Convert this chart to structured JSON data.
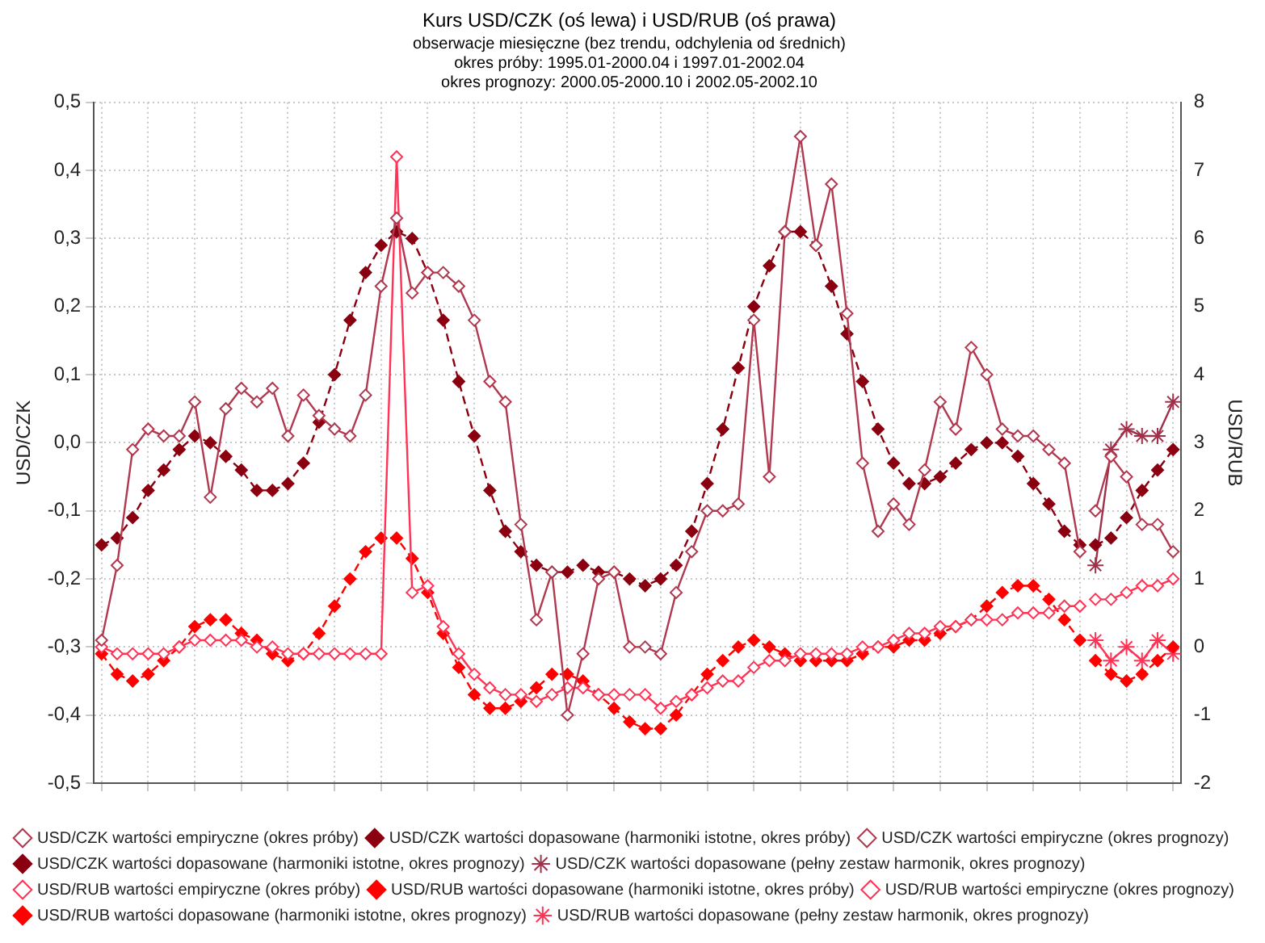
{
  "chart_data": {
    "type": "line",
    "title": "Kurs USD/CZK (oś lewa) i USD/RUB (oś prawa)",
    "subtitle": "obserwacje miesięczne (bez trendu, odchylenia od średnich)",
    "annotations": [
      "okres próby: 1995.01-2000.04 i 1997.01-2002.04",
      "okres prognozy: 2000.05-2000.10 i 2002.05-2002.10"
    ],
    "ylabel": "USD/CZK",
    "y2label": "USD/RUB",
    "categories": [
      null,
      null,
      null,
      null,
      null,
      null,
      null,
      null,
      null,
      null,
      null,
      null,
      null,
      null,
      null,
      null,
      null,
      null,
      null,
      null,
      null,
      null,
      null,
      null,
      null,
      null,
      null,
      null,
      null,
      null,
      null,
      null,
      null,
      null,
      null,
      null,
      null,
      null,
      null,
      null,
      null,
      null,
      null,
      null,
      null,
      null,
      null,
      null,
      null,
      null,
      null,
      null,
      null,
      null,
      null,
      null,
      null,
      null,
      null,
      null,
      null,
      null,
      null,
      null,
      null,
      null,
      null,
      null,
      null,
      null
    ],
    "ylim": [
      -0.5,
      0.5
    ],
    "yticks": [
      {
        "value": -0.5,
        "label": "-0,5"
      },
      {
        "value": -0.4,
        "label": "-0,4"
      },
      {
        "value": -0.3,
        "label": "-0,3"
      },
      {
        "value": -0.2,
        "label": "-0,2"
      },
      {
        "value": -0.1,
        "label": "-0,1"
      },
      {
        "value": 0,
        "label": "0,0"
      },
      {
        "value": 0.1,
        "label": "0,1"
      },
      {
        "value": 0.2,
        "label": "0,2"
      },
      {
        "value": 0.3,
        "label": "0,3"
      },
      {
        "value": 0.4,
        "label": "0,4"
      },
      {
        "value": 0.5,
        "label": "0,5"
      }
    ],
    "y2lim": [
      -2,
      8
    ],
    "y2ticks": [
      -2,
      -1,
      0,
      1,
      2,
      3,
      4,
      5,
      6,
      7,
      8
    ],
    "grid": true,
    "legend": "bottom",
    "series": [
      {
        "name": "USD/CZK wartości empiryczne (okres próby)",
        "color": "#b0384f",
        "marker": "diamond",
        "line_style": "solid",
        "values": [
          -0.29,
          -0.18,
          -0.01,
          0.02,
          0.01,
          0.01,
          0.06,
          -0.08,
          0.05,
          0.08,
          0.06,
          0.08,
          0.01,
          0.07,
          0.04,
          0.02,
          0.01,
          0.07,
          0.23,
          0.33,
          0.22,
          0.25,
          0.25,
          0.23,
          0.18,
          0.09,
          0.06,
          -0.12,
          -0.26,
          -0.19,
          -0.4,
          -0.31,
          -0.2,
          -0.19,
          -0.3,
          -0.3,
          -0.31,
          -0.22,
          -0.16,
          -0.1,
          -0.1,
          -0.09,
          0.18,
          -0.05,
          0.31,
          0.45,
          0.29,
          0.38,
          0.19,
          -0.03,
          -0.13,
          -0.09,
          -0.12,
          -0.04,
          0.06,
          0.02,
          0.14,
          0.1,
          0.02,
          0.01,
          0.01,
          -0.01,
          -0.03,
          -0.16,
          null,
          null,
          null,
          null,
          null,
          null
        ]
      },
      {
        "name": "USD/CZK wartości dopasowane (harmoniki istotne, okres próby)",
        "color": "#8b0010",
        "marker": "diamond",
        "line_style": "dashed",
        "values": [
          -0.15,
          -0.14,
          -0.11,
          -0.07,
          -0.04,
          -0.01,
          0.01,
          0.0,
          -0.02,
          -0.04,
          -0.07,
          -0.07,
          -0.06,
          -0.03,
          0.03,
          0.1,
          0.18,
          0.25,
          0.29,
          0.31,
          0.3,
          0.25,
          0.18,
          0.09,
          0.01,
          -0.07,
          -0.13,
          -0.16,
          -0.18,
          -0.19,
          -0.19,
          -0.18,
          -0.19,
          -0.19,
          -0.2,
          -0.21,
          -0.2,
          -0.18,
          -0.13,
          -0.06,
          0.02,
          0.11,
          0.2,
          0.26,
          0.31,
          0.31,
          0.29,
          0.23,
          0.16,
          0.09,
          0.02,
          -0.03,
          -0.06,
          -0.06,
          -0.05,
          -0.03,
          -0.01,
          0.0,
          0.0,
          -0.02,
          -0.06,
          -0.09,
          -0.13,
          -0.15,
          null,
          null,
          null,
          null,
          null,
          null
        ]
      },
      {
        "name": "USD/CZK wartości empiryczne (okres prognozy)",
        "color": "#b0384f",
        "marker": "diamond",
        "line_style": "solid",
        "values": [
          null,
          null,
          null,
          null,
          null,
          null,
          null,
          null,
          null,
          null,
          null,
          null,
          null,
          null,
          null,
          null,
          null,
          null,
          null,
          null,
          null,
          null,
          null,
          null,
          null,
          null,
          null,
          null,
          null,
          null,
          null,
          null,
          null,
          null,
          null,
          null,
          null,
          null,
          null,
          null,
          null,
          null,
          null,
          null,
          null,
          null,
          null,
          null,
          null,
          null,
          null,
          null,
          null,
          null,
          null,
          null,
          null,
          null,
          null,
          null,
          null,
          null,
          null,
          null,
          -0.1,
          -0.02,
          -0.05,
          -0.12,
          -0.12,
          -0.16
        ]
      },
      {
        "name": "USD/CZK wartości dopasowane (harmoniki istotne, okres prognozy)",
        "color": "#8b0010",
        "marker": "diamond",
        "line_style": "dashed",
        "values": [
          null,
          null,
          null,
          null,
          null,
          null,
          null,
          null,
          null,
          null,
          null,
          null,
          null,
          null,
          null,
          null,
          null,
          null,
          null,
          null,
          null,
          null,
          null,
          null,
          null,
          null,
          null,
          null,
          null,
          null,
          null,
          null,
          null,
          null,
          null,
          null,
          null,
          null,
          null,
          null,
          null,
          null,
          null,
          null,
          null,
          null,
          null,
          null,
          null,
          null,
          null,
          null,
          null,
          null,
          null,
          null,
          null,
          null,
          null,
          null,
          null,
          null,
          null,
          null,
          -0.15,
          -0.14,
          -0.11,
          -0.07,
          -0.04,
          -0.01
        ]
      },
      {
        "name": "USD/CZK wartości dopasowane (pełny zestaw harmonik, okres prognozy)",
        "color": "#a0304a",
        "marker": "cross",
        "line_style": "solid",
        "values": [
          null,
          null,
          null,
          null,
          null,
          null,
          null,
          null,
          null,
          null,
          null,
          null,
          null,
          null,
          null,
          null,
          null,
          null,
          null,
          null,
          null,
          null,
          null,
          null,
          null,
          null,
          null,
          null,
          null,
          null,
          null,
          null,
          null,
          null,
          null,
          null,
          null,
          null,
          null,
          null,
          null,
          null,
          null,
          null,
          null,
          null,
          null,
          null,
          null,
          null,
          null,
          null,
          null,
          null,
          null,
          null,
          null,
          null,
          null,
          null,
          null,
          null,
          null,
          null,
          -0.18,
          -0.01,
          0.02,
          0.01,
          0.01,
          0.06
        ]
      },
      {
        "name": "USD/RUB wartości empiryczne (okres próby)",
        "color": "#ff3355",
        "marker": "diamond",
        "line_style": "solid",
        "axis": "y2",
        "values": [
          0.0,
          -0.1,
          -0.1,
          -0.1,
          -0.1,
          0.0,
          0.1,
          0.1,
          0.1,
          0.1,
          0.0,
          0.0,
          -0.1,
          -0.1,
          -0.1,
          -0.1,
          -0.1,
          -0.1,
          -0.1,
          7.2,
          0.8,
          0.9,
          0.3,
          -0.1,
          -0.4,
          -0.6,
          -0.7,
          -0.7,
          -0.8,
          -0.7,
          -0.6,
          -0.6,
          -0.7,
          -0.7,
          -0.7,
          -0.7,
          -0.9,
          -0.8,
          -0.7,
          -0.6,
          -0.5,
          -0.5,
          -0.3,
          -0.2,
          -0.2,
          -0.1,
          -0.1,
          -0.1,
          -0.1,
          0.0,
          0.0,
          0.1,
          0.2,
          0.2,
          0.3,
          0.3,
          0.4,
          0.4,
          0.4,
          0.5,
          0.5,
          0.5,
          0.6,
          0.6,
          null,
          null,
          null,
          null,
          null,
          null
        ]
      },
      {
        "name": "USD/RUB wartości dopasowane (harmoniki istotne, okres próby)",
        "color": "#ff0000",
        "marker": "diamond",
        "line_style": "dashed",
        "axis": "y2",
        "values": [
          -0.1,
          -0.4,
          -0.5,
          -0.4,
          -0.2,
          0.0,
          0.3,
          0.4,
          0.4,
          0.2,
          0.1,
          -0.1,
          -0.2,
          -0.1,
          0.2,
          0.6,
          1.0,
          1.4,
          1.6,
          1.6,
          1.3,
          0.8,
          0.2,
          -0.3,
          -0.7,
          -0.9,
          -0.9,
          -0.8,
          -0.6,
          -0.4,
          -0.4,
          -0.5,
          -0.7,
          -0.9,
          -1.1,
          -1.2,
          -1.2,
          -1.0,
          -0.7,
          -0.4,
          -0.2,
          0.0,
          0.1,
          0.0,
          -0.1,
          -0.2,
          -0.2,
          -0.2,
          -0.2,
          -0.1,
          0.0,
          0.0,
          0.1,
          0.1,
          0.2,
          0.3,
          0.4,
          0.6,
          0.8,
          0.9,
          0.9,
          0.7,
          0.4,
          0.1,
          null,
          null,
          null,
          null,
          null,
          null
        ]
      },
      {
        "name": "USD/RUB wartości empiryczne (okres prognozy)",
        "color": "#ff3355",
        "marker": "diamond",
        "line_style": "solid",
        "axis": "y2",
        "values": [
          null,
          null,
          null,
          null,
          null,
          null,
          null,
          null,
          null,
          null,
          null,
          null,
          null,
          null,
          null,
          null,
          null,
          null,
          null,
          null,
          null,
          null,
          null,
          null,
          null,
          null,
          null,
          null,
          null,
          null,
          null,
          null,
          null,
          null,
          null,
          null,
          null,
          null,
          null,
          null,
          null,
          null,
          null,
          null,
          null,
          null,
          null,
          null,
          null,
          null,
          null,
          null,
          null,
          null,
          null,
          null,
          null,
          null,
          null,
          null,
          null,
          null,
          null,
          null,
          0.7,
          0.7,
          0.8,
          0.9,
          0.9,
          1.0
        ]
      },
      {
        "name": "USD/RUB wartości dopasowane (harmoniki istotne, okres prognozy)",
        "color": "#ff0000",
        "marker": "diamond",
        "line_style": "dashed",
        "axis": "y2",
        "values": [
          null,
          null,
          null,
          null,
          null,
          null,
          null,
          null,
          null,
          null,
          null,
          null,
          null,
          null,
          null,
          null,
          null,
          null,
          null,
          null,
          null,
          null,
          null,
          null,
          null,
          null,
          null,
          null,
          null,
          null,
          null,
          null,
          null,
          null,
          null,
          null,
          null,
          null,
          null,
          null,
          null,
          null,
          null,
          null,
          null,
          null,
          null,
          null,
          null,
          null,
          null,
          null,
          null,
          null,
          null,
          null,
          null,
          null,
          null,
          null,
          null,
          null,
          null,
          null,
          -0.2,
          -0.4,
          -0.5,
          -0.4,
          -0.2,
          0.0
        ]
      },
      {
        "name": "USD/RUB wartości dopasowane (pełny zestaw harmonik, okres prognozy)",
        "color": "#ff3355",
        "marker": "cross",
        "line_style": "solid",
        "axis": "y2",
        "values": [
          null,
          null,
          null,
          null,
          null,
          null,
          null,
          null,
          null,
          null,
          null,
          null,
          null,
          null,
          null,
          null,
          null,
          null,
          null,
          null,
          null,
          null,
          null,
          null,
          null,
          null,
          null,
          null,
          null,
          null,
          null,
          null,
          null,
          null,
          null,
          null,
          null,
          null,
          null,
          null,
          null,
          null,
          null,
          null,
          null,
          null,
          null,
          null,
          null,
          null,
          null,
          null,
          null,
          null,
          null,
          null,
          null,
          null,
          null,
          null,
          null,
          null,
          null,
          null,
          0.1,
          -0.2,
          0.0,
          -0.2,
          0.1,
          -0.1
        ]
      }
    ]
  }
}
